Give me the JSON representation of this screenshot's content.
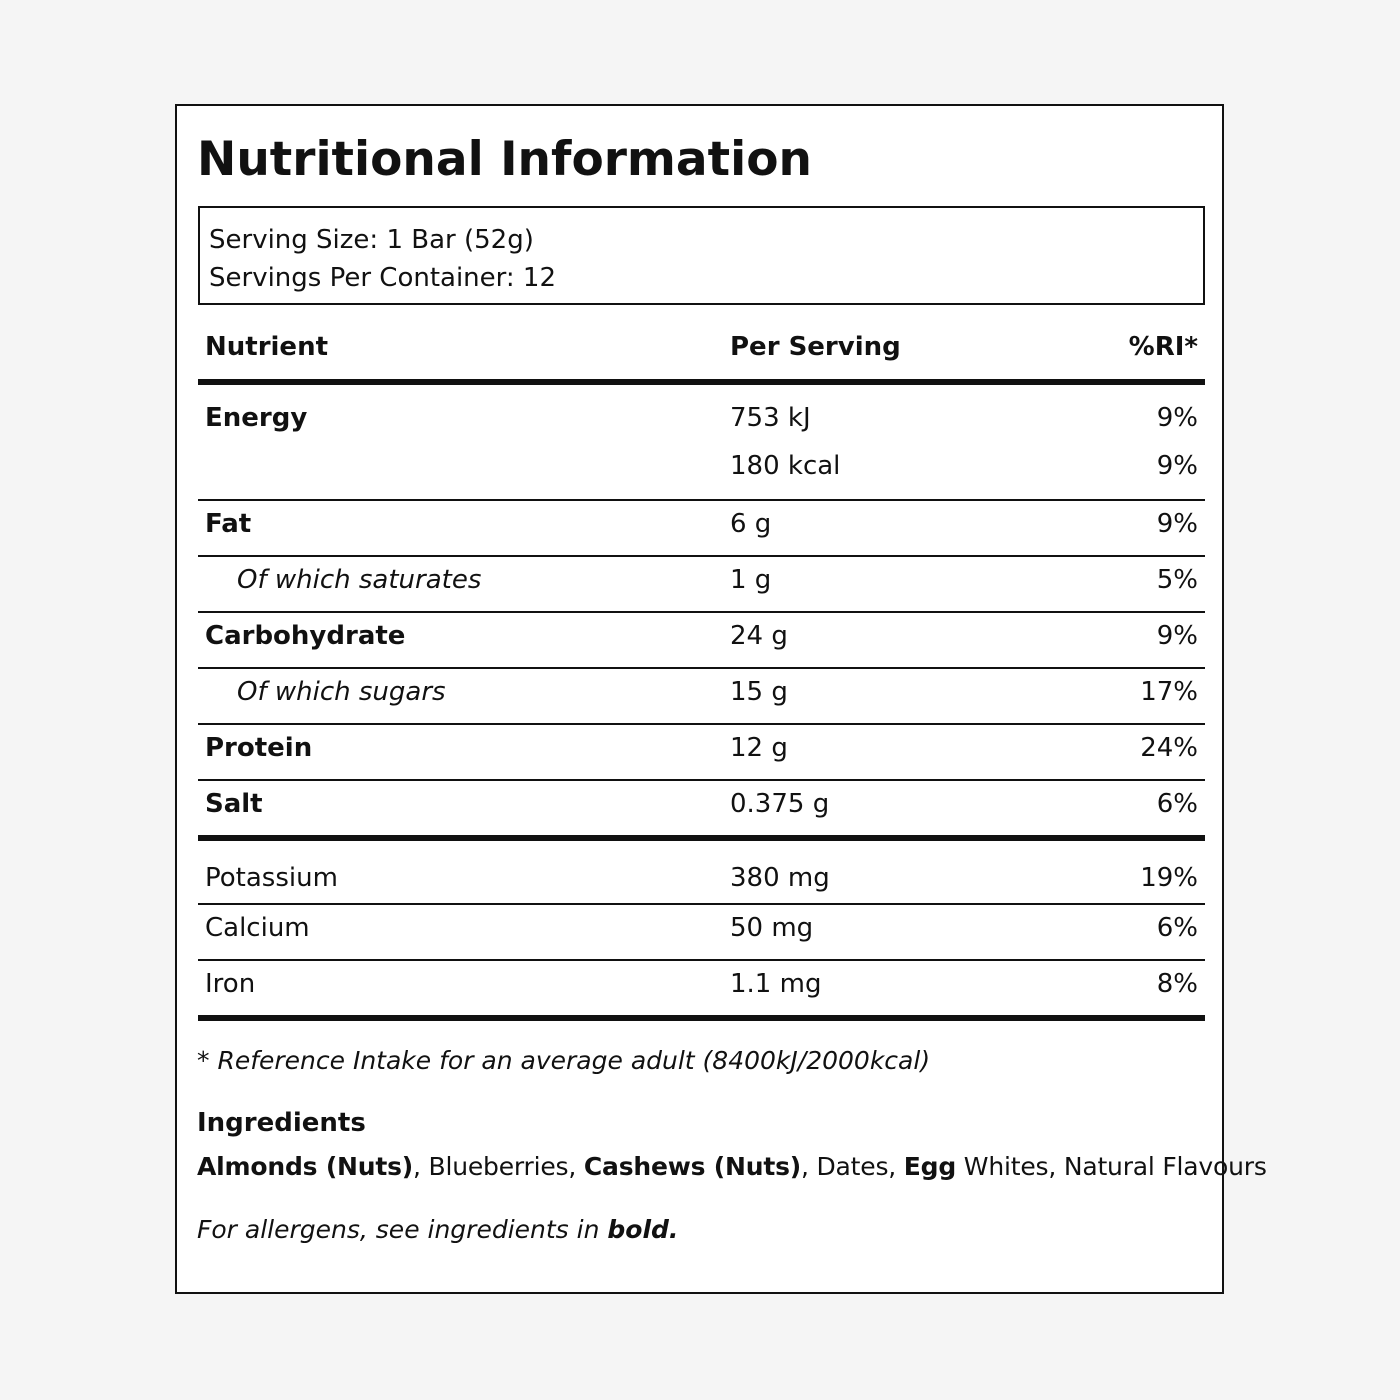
{
  "title": "Nutritional Information",
  "serving": {
    "size": "Serving Size: 1 Bar (52g)",
    "per_container": "Servings Per Container: 12"
  },
  "table": {
    "headers": {
      "nutrient": "Nutrient",
      "per_serving": "Per Serving",
      "ri": "%RI*"
    },
    "energy": {
      "label": "Energy",
      "kj": "753 kJ",
      "kj_ri": "9%",
      "kcal": "180 kcal",
      "kcal_ri": "9%"
    },
    "rows": [
      {
        "label": "Fat",
        "value": "6 g",
        "ri": "9%"
      },
      {
        "label": "Of which saturates",
        "value": "1 g",
        "ri": "5%"
      },
      {
        "label": "Carbohydrate",
        "value": "24 g",
        "ri": "9%"
      },
      {
        "label": "Of which sugars",
        "value": "15 g",
        "ri": "17%"
      },
      {
        "label": "Protein",
        "value": "12 g",
        "ri": "24%"
      },
      {
        "label": "Salt",
        "value": "0.375 g",
        "ri": "6%"
      }
    ],
    "minerals": [
      {
        "label": "Potassium",
        "value": "380 mg",
        "ri": "19%"
      },
      {
        "label": "Calcium",
        "value": "50 mg",
        "ri": "6%"
      },
      {
        "label": "Iron",
        "value": "1.1 mg",
        "ri": "8%"
      }
    ]
  },
  "footnote": "* Reference Intake for an average adult (8400kJ/2000kcal)",
  "ingredients": {
    "heading": "Ingredients",
    "items": [
      {
        "text": "Almonds (Nuts)",
        "allergen": true
      },
      {
        "text": ", Blueberries, ",
        "allergen": false
      },
      {
        "text": "Cashews (Nuts)",
        "allergen": true
      },
      {
        "text": ", Dates, ",
        "allergen": false
      },
      {
        "text": "Egg",
        "allergen": true
      },
      {
        "text": " Whites, Natural Flavours",
        "allergen": false
      }
    ]
  },
  "allergen_note": {
    "prefix": "For allergens, see ingredients in ",
    "emphasis": "bold."
  }
}
